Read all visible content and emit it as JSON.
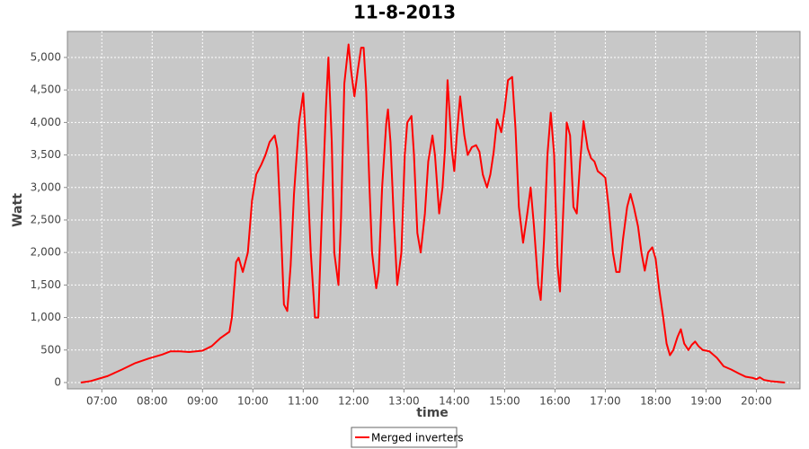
{
  "chart_data": {
    "type": "line",
    "title": "11-8-2013",
    "x_label": "time",
    "y_label": "Watt",
    "x": [
      395,
      406,
      427,
      444,
      460,
      476,
      492,
      502,
      513,
      524,
      540,
      551,
      561,
      572,
      575,
      580,
      583,
      588,
      594,
      599,
      604,
      610,
      615,
      620,
      626,
      629,
      633,
      637,
      641,
      645,
      649,
      655,
      660,
      664,
      669,
      674,
      678,
      682,
      687,
      690,
      694,
      697,
      702,
      705,
      709,
      714,
      717,
      721,
      725,
      729,
      732,
      735,
      739,
      742,
      747,
      750,
      754,
      759,
      761,
      764,
      768,
      772,
      777,
      781,
      784,
      789,
      792,
      796,
      800,
      805,
      809,
      814,
      817,
      822,
      826,
      829,
      832,
      837,
      840,
      843,
      847,
      852,
      856,
      861,
      866,
      870,
      874,
      879,
      883,
      887,
      891,
      896,
      900,
      904,
      909,
      913,
      917,
      922,
      927,
      931,
      935,
      940,
      943,
      947,
      951,
      955,
      959,
      963,
      966,
      971,
      974,
      978,
      982,
      986,
      990,
      994,
      999,
      1003,
      1007,
      1011,
      1016,
      1020,
      1024,
      1029,
      1033,
      1037,
      1041,
      1046,
      1050,
      1054,
      1059,
      1063,
      1067,
      1071,
      1076,
      1080,
      1084,
      1089,
      1093,
      1097,
      1101,
      1106,
      1110,
      1114,
      1119,
      1123,
      1127,
      1131,
      1136,
      1144,
      1153,
      1161,
      1170,
      1179,
      1187,
      1196,
      1200,
      1204,
      1209,
      1217,
      1226,
      1234
    ],
    "series": [
      {
        "name": "Merged inverters",
        "color": "#ff0000",
        "values": [
          0,
          20,
          100,
          200,
          300,
          370,
          430,
          480,
          480,
          470,
          490,
          560,
          680,
          780,
          1000,
          1850,
          1920,
          1700,
          2000,
          2800,
          3200,
          3350,
          3500,
          3700,
          3800,
          3600,
          2500,
          1200,
          1100,
          1800,
          2900,
          4000,
          4450,
          3500,
          2000,
          1000,
          1000,
          2500,
          4200,
          5000,
          3700,
          2000,
          1500,
          2500,
          4600,
          5200,
          4800,
          4400,
          4800,
          5150,
          5150,
          4500,
          3000,
          2000,
          1450,
          1700,
          3000,
          4000,
          4200,
          3700,
          2500,
          1500,
          2000,
          3500,
          4000,
          4100,
          3500,
          2300,
          2000,
          2600,
          3400,
          3800,
          3500,
          2600,
          3000,
          3600,
          4650,
          3600,
          3250,
          3800,
          4400,
          3800,
          3500,
          3620,
          3650,
          3550,
          3200,
          3000,
          3200,
          3550,
          4050,
          3850,
          4200,
          4650,
          4700,
          3900,
          2700,
          2150,
          2600,
          3000,
          2400,
          1500,
          1270,
          2200,
          3500,
          4150,
          3500,
          1800,
          1400,
          3000,
          4000,
          3800,
          2700,
          2600,
          3400,
          4020,
          3600,
          3450,
          3400,
          3250,
          3200,
          3150,
          2700,
          2000,
          1700,
          1700,
          2200,
          2700,
          2900,
          2700,
          2400,
          2000,
          1720,
          2000,
          2080,
          1900,
          1450,
          1000,
          600,
          420,
          500,
          700,
          820,
          600,
          500,
          580,
          630,
          560,
          500,
          480,
          380,
          250,
          200,
          140,
          90,
          70,
          50,
          80,
          40,
          20,
          10,
          0
        ]
      }
    ],
    "xlim": [
      379,
      1252
    ],
    "ylim": [
      -97,
      5400
    ],
    "xticks": [
      {
        "value": 420,
        "label": "07:00"
      },
      {
        "value": 480,
        "label": "08:00"
      },
      {
        "value": 540,
        "label": "09:00"
      },
      {
        "value": 600,
        "label": "10:00"
      },
      {
        "value": 660,
        "label": "11:00"
      },
      {
        "value": 720,
        "label": "12:00"
      },
      {
        "value": 780,
        "label": "13:00"
      },
      {
        "value": 840,
        "label": "14:00"
      },
      {
        "value": 900,
        "label": "15:00"
      },
      {
        "value": 960,
        "label": "16:00"
      },
      {
        "value": 1020,
        "label": "17:00"
      },
      {
        "value": 1080,
        "label": "18:00"
      },
      {
        "value": 1140,
        "label": "19:00"
      },
      {
        "value": 1200,
        "label": "20:00"
      }
    ],
    "yticks": [
      0,
      {
        "value": 500,
        "label": "500"
      },
      {
        "value": 1000,
        "label": "1,000"
      },
      {
        "value": 1500,
        "label": "1,500"
      },
      {
        "value": 2000,
        "label": "2,000"
      },
      {
        "value": 2500,
        "label": "2,500"
      },
      {
        "value": 3000,
        "label": "3,000"
      },
      {
        "value": 3500,
        "label": "3,500"
      },
      {
        "value": 4000,
        "label": "4,000"
      },
      {
        "value": 4500,
        "label": "4,500"
      },
      {
        "value": 5000,
        "label": "5,000"
      }
    ],
    "grid": true,
    "legend": "bottom"
  }
}
